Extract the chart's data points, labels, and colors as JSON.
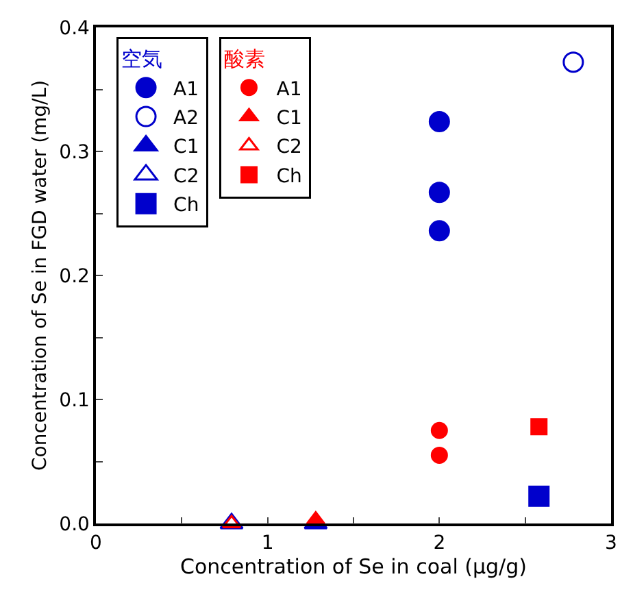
{
  "chart_data": {
    "type": "scatter",
    "xlabel": "Concentration of Se in coal (μg/g)",
    "ylabel": "Concentration of Se in FGD water (mg/L)",
    "xlim": [
      0,
      3
    ],
    "ylim": [
      0,
      0.4
    ],
    "xticks": [
      0,
      {
        "value": 0.5,
        "label": null
      },
      1,
      {
        "value": 1.5,
        "label": null
      },
      2,
      {
        "value": 2.5,
        "label": null
      },
      3
    ],
    "yticks": [
      "0.0",
      {
        "value": 0.05,
        "label": null
      },
      {
        "value": 0.1,
        "label": "0.1"
      },
      {
        "value": 0.15,
        "label": null
      },
      {
        "value": 0.2,
        "label": "0.2"
      },
      {
        "value": 0.25,
        "label": null
      },
      {
        "value": 0.3,
        "label": "0.3"
      },
      {
        "value": 0.35,
        "label": null
      },
      {
        "value": 0.4,
        "label": "0.4"
      }
    ],
    "legend": "top left",
    "annotations": [
      "空気",
      "酸素"
    ],
    "series": [
      {
        "name": "A1",
        "color": "#0000cc",
        "marker": "circle",
        "x": [
          2,
          2,
          2
        ],
        "values": [
          0.324,
          0.267,
          0.236
        ]
      },
      {
        "name": "A2",
        "color": "#0000cc",
        "marker": "circle-open",
        "x": [
          2.78
        ],
        "values": [
          0.372
        ]
      },
      {
        "name": "C1",
        "color": "#0000cc",
        "marker": "triangle",
        "x": [
          1.28
        ],
        "values": [
          0.0
        ]
      },
      {
        "name": "C2",
        "color": "#0000cc",
        "marker": "triangle-open",
        "x": [
          0.79
        ],
        "values": [
          0.0
        ]
      },
      {
        "name": "Ch",
        "color": "#0000cc",
        "marker": "square",
        "x": [
          2.58
        ],
        "values": [
          0.022
        ]
      },
      {
        "name": "A1",
        "color": "#ff0000",
        "marker": "circle",
        "x": [
          2,
          2
        ],
        "values": [
          0.075,
          0.055
        ]
      },
      {
        "name": "C1",
        "color": "#ff0000",
        "marker": "triangle",
        "x": [
          1.28
        ],
        "values": [
          0.003
        ]
      },
      {
        "name": "C2",
        "color": "#ff0000",
        "marker": "triangle-open",
        "x": [
          0.79
        ],
        "values": [
          0.0
        ]
      },
      {
        "name": "Ch",
        "color": "#ff0000",
        "marker": "square",
        "x": [
          2.58
        ],
        "values": [
          0.078
        ]
      }
    ]
  }
}
